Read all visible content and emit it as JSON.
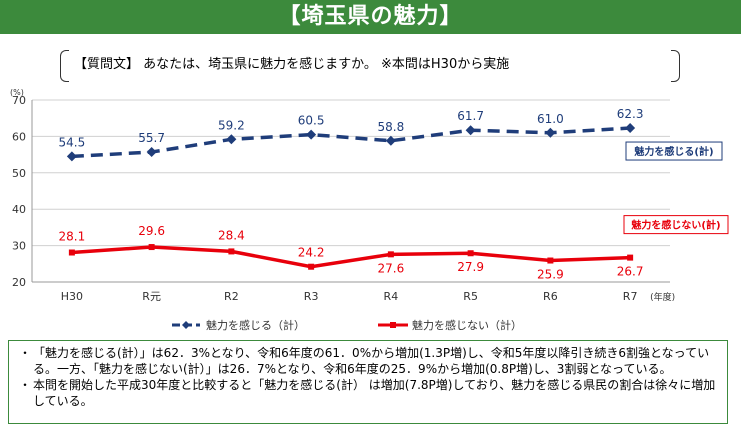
{
  "page_title": "【埼玉県の魅力】",
  "question": "【質問文】 あなたは、埼玉県に魅力を感じますか。 ※本問はH30から実施",
  "chart_data": {
    "type": "line",
    "categories": [
      "H30",
      "R元",
      "R2",
      "R3",
      "R4",
      "R5",
      "R6",
      "R7"
    ],
    "series": [
      {
        "name": "魅力を感じる（計）",
        "label": "魅力を感じる(計)",
        "color": "#1f3d7a",
        "dashed": true,
        "values": [
          54.5,
          55.7,
          59.2,
          60.5,
          58.8,
          61.7,
          61.0,
          62.3
        ]
      },
      {
        "name": "魅力を感じない（計）",
        "label": "魅力を感じない(計)",
        "color": "#e8000b",
        "dashed": false,
        "values": [
          28.1,
          29.6,
          28.4,
          24.2,
          27.6,
          27.9,
          25.9,
          26.7
        ]
      }
    ],
    "ylim": [
      20,
      70
    ],
    "yticks": [
      "20",
      "30",
      "40",
      "50",
      "60",
      "70"
    ],
    "yunit": "(%)",
    "xunit": "(年度)",
    "value_labels_1": [
      "54.5",
      "55.7",
      "59.2",
      "60.5",
      "58.8",
      "61.7",
      "61.0",
      "62.3"
    ],
    "value_labels_2": [
      "28.1",
      "29.6",
      "28.4",
      "24.2",
      "27.6",
      "27.9",
      "25.9",
      "26.7"
    ]
  },
  "legend": {
    "series1": "魅力を感じる（計）",
    "series2": "魅力を感じない（計）"
  },
  "notes": [
    {
      "bullet": "・",
      "text": "「魅力を感じる(計）」は62．3%となり、令和6年度の61．0%から増加(1.3P増)し、令和5年度以降引き続き6割強となっている。一方、「魅力を感じない(計）」は26．7%となり、令和6年度の25．9%から増加(0.8P増)し、3割弱となっている。"
    },
    {
      "bullet": "・",
      "text": " 本問を開始した平成30年度と比較すると「魅力を感じる(計） は増加(7.8P増)しており、魅力を感じる県民の割合は徐々に増加している。"
    }
  ]
}
